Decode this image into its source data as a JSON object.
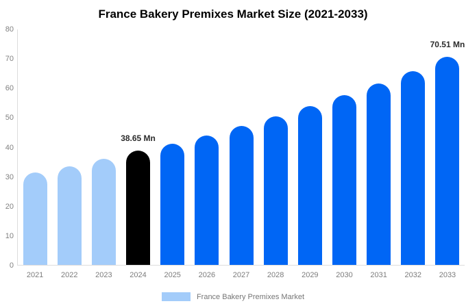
{
  "chart_data": {
    "type": "bar",
    "title": "France Bakery Premixes Market Size (2021-2033)",
    "xlabel": "",
    "ylabel": "",
    "ylim": [
      0,
      80
    ],
    "yticks": [
      0,
      10,
      20,
      30,
      40,
      50,
      60,
      70,
      80
    ],
    "grid": false,
    "categories": [
      "2021",
      "2022",
      "2023",
      "2024",
      "2025",
      "2026",
      "2027",
      "2028",
      "2029",
      "2030",
      "2031",
      "2032",
      "2033"
    ],
    "values": [
      31.2,
      33.5,
      36.0,
      38.65,
      41.1,
      43.9,
      47.0,
      50.3,
      53.7,
      57.4,
      61.4,
      65.6,
      70.51
    ],
    "bar_colors": [
      "#A3CCFA",
      "#A3CCFA",
      "#A3CCFA",
      "#000000",
      "#0066F5",
      "#0066F5",
      "#0066F5",
      "#0066F5",
      "#0066F5",
      "#0066F5",
      "#0066F5",
      "#0066F5",
      "#0066F5"
    ],
    "annotations": [
      {
        "category": "2024",
        "text": "38.65 Mn"
      },
      {
        "category": "2033",
        "text": "70.51 Mn"
      }
    ],
    "legend": {
      "position": "bottom",
      "label": "France Bakery Premixes Market",
      "swatch_color": "#A3CCFA"
    },
    "colors": {
      "historical_bar": "#A3CCFA",
      "base_year_bar": "#000000",
      "forecast_bar": "#0066F5",
      "axis_line": "#DCDCDC",
      "tick_label": "#808080",
      "annotation_text": "#2B2B2B",
      "title_text": "#000000"
    }
  }
}
